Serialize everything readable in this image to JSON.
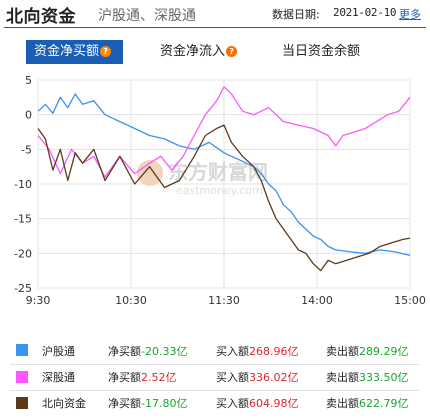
{
  "header": {
    "title": "北向资金",
    "subtitle": "沪股通、深股通",
    "date_label": "数据日期:",
    "date_value": "2021-02-10",
    "more_label": "更多"
  },
  "tabs": [
    {
      "label": "资金净买额",
      "active": true,
      "help_icon": "question-icon"
    },
    {
      "label": "资金净流入",
      "active": false,
      "help_icon": "question-icon"
    },
    {
      "label": "当日资金余额",
      "active": false
    }
  ],
  "watermark": {
    "line1": "东方财富网",
    "line2": "eastmoney.com"
  },
  "colors": {
    "accent": "#1a5fb4",
    "hgt": "#3a93ee",
    "sgt": "#ff57ff",
    "north": "#5b3a1a",
    "positive": "#e0262b",
    "negative": "#1aa52f"
  },
  "chart_data": {
    "type": "line",
    "ylim": [
      -25,
      5
    ],
    "yticks": [
      "5",
      "0",
      "-5",
      "-10",
      "-15",
      "-20",
      "-25"
    ],
    "xticks": [
      "9:30",
      "10:30",
      "11:30",
      "14:00",
      "15:00"
    ],
    "grid": true,
    "series": [
      {
        "name": "沪股通",
        "color": "#3a93ee",
        "x": [
          0,
          0.02,
          0.04,
          0.06,
          0.08,
          0.1,
          0.12,
          0.15,
          0.18,
          0.22,
          0.26,
          0.3,
          0.34,
          0.38,
          0.42,
          0.46,
          0.5,
          0.52,
          0.54,
          0.56,
          0.58,
          0.6,
          0.62,
          0.64,
          0.66,
          0.68,
          0.7,
          0.72,
          0.74,
          0.76,
          0.78,
          0.8,
          0.84,
          0.88,
          0.92,
          0.96,
          1
        ],
        "y": [
          0.5,
          1.5,
          0.2,
          2.5,
          1.0,
          3.0,
          1.5,
          2.0,
          0.0,
          -1.0,
          -2.0,
          -3.0,
          -3.5,
          -4.5,
          -5.0,
          -4.0,
          -5.5,
          -6.0,
          -6.5,
          -7.0,
          -7.5,
          -8.5,
          -10.0,
          -11.0,
          -13.0,
          -14.0,
          -15.5,
          -16.5,
          -17.5,
          -18.0,
          -19.0,
          -19.5,
          -19.8,
          -20.0,
          -19.5,
          -19.8,
          -20.3
        ]
      },
      {
        "name": "深股通",
        "color": "#ff57ff",
        "x": [
          0,
          0.03,
          0.06,
          0.09,
          0.12,
          0.15,
          0.18,
          0.22,
          0.26,
          0.3,
          0.33,
          0.36,
          0.39,
          0.42,
          0.45,
          0.48,
          0.5,
          0.52,
          0.55,
          0.58,
          0.62,
          0.66,
          0.7,
          0.74,
          0.78,
          0.8,
          0.82,
          0.85,
          0.88,
          0.91,
          0.94,
          0.97,
          1
        ],
        "y": [
          -3.0,
          -5.0,
          -8.5,
          -5.0,
          -7.0,
          -6.0,
          -9.0,
          -6.0,
          -8.5,
          -7.0,
          -6.0,
          -8.0,
          -6.0,
          -3.0,
          0.0,
          2.0,
          4.0,
          3.0,
          0.5,
          0.0,
          1.0,
          -1.0,
          -1.5,
          -2.0,
          -3.0,
          -4.5,
          -3.0,
          -2.5,
          -2.0,
          -1.0,
          0.0,
          0.5,
          2.5
        ]
      },
      {
        "name": "北向资金",
        "color": "#5b3a1a",
        "x": [
          0,
          0.02,
          0.04,
          0.06,
          0.08,
          0.1,
          0.12,
          0.15,
          0.18,
          0.22,
          0.26,
          0.3,
          0.34,
          0.38,
          0.42,
          0.45,
          0.48,
          0.5,
          0.52,
          0.55,
          0.58,
          0.6,
          0.62,
          0.64,
          0.66,
          0.68,
          0.7,
          0.72,
          0.74,
          0.76,
          0.78,
          0.8,
          0.83,
          0.86,
          0.89,
          0.92,
          0.95,
          0.98,
          1
        ],
        "y": [
          -2.0,
          -3.5,
          -8.0,
          -5.0,
          -9.5,
          -5.5,
          -7.0,
          -5.0,
          -9.5,
          -6.0,
          -10.0,
          -7.5,
          -10.5,
          -9.5,
          -6.0,
          -3.0,
          -2.0,
          -1.5,
          -4.0,
          -6.0,
          -7.5,
          -9.5,
          -12.5,
          -15.0,
          -16.5,
          -18.0,
          -19.5,
          -20.0,
          -21.5,
          -22.5,
          -21.0,
          -21.5,
          -21.0,
          -20.5,
          -20.0,
          -19.0,
          -18.5,
          -18.0,
          -17.8
        ]
      }
    ]
  },
  "legend": [
    {
      "name": "沪股通",
      "color": "#3a93ee",
      "net_label": "净买额",
      "net_value": "-20.33亿",
      "buy_label": "买入额",
      "buy_value": "268.96亿",
      "sell_label": "卖出额",
      "sell_value": "289.29亿"
    },
    {
      "name": "深股通",
      "color": "#ff57ff",
      "net_label": "净买额",
      "net_value": "2.52亿",
      "buy_label": "买入额",
      "buy_value": "336.02亿",
      "sell_label": "卖出额",
      "sell_value": "333.50亿"
    },
    {
      "name": "北向资金",
      "color": "#5b3a1a",
      "net_label": "净买额",
      "net_value": "-17.80亿",
      "buy_label": "买入额",
      "buy_value": "604.98亿",
      "sell_label": "卖出额",
      "sell_value": "622.79亿"
    }
  ]
}
